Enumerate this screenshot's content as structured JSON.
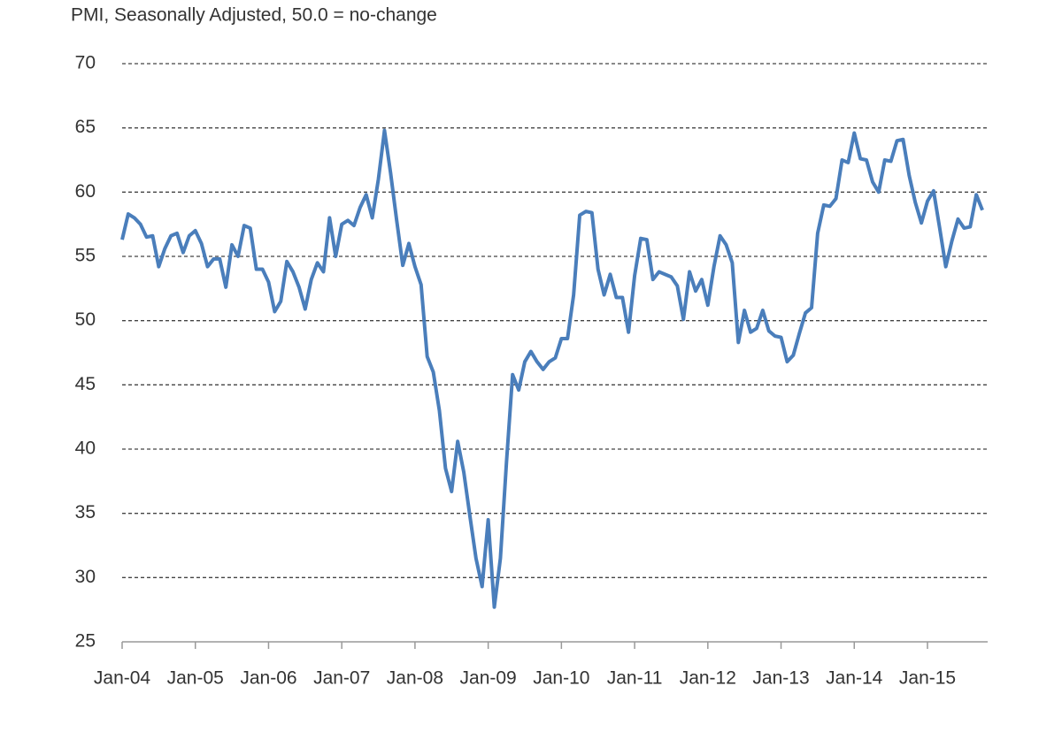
{
  "chart_data": {
    "type": "line",
    "title": "PMI, Seasonally Adjusted, 50.0 = no-change",
    "categories": [
      "Jan-04",
      null,
      null,
      null,
      null,
      null,
      null,
      null,
      null,
      null,
      null,
      null,
      "Jan-05",
      null,
      null,
      null,
      null,
      null,
      null,
      null,
      null,
      null,
      null,
      null,
      "Jan-06",
      null,
      null,
      null,
      null,
      null,
      null,
      null,
      null,
      null,
      null,
      null,
      "Jan-07",
      null,
      null,
      null,
      null,
      null,
      null,
      null,
      null,
      null,
      null,
      null,
      "Jan-08",
      null,
      null,
      null,
      null,
      null,
      null,
      null,
      null,
      null,
      null,
      null,
      "Jan-09",
      null,
      null,
      null,
      null,
      null,
      null,
      null,
      null,
      null,
      null,
      null,
      "Jan-10",
      null,
      null,
      null,
      null,
      null,
      null,
      null,
      null,
      null,
      null,
      null,
      "Jan-11",
      null,
      null,
      null,
      null,
      null,
      null,
      null,
      null,
      null,
      null,
      null,
      "Jan-12",
      null,
      null,
      null,
      null,
      null,
      null,
      null,
      null,
      null,
      null,
      null,
      "Jan-13",
      null,
      null,
      null,
      null,
      null,
      null,
      null,
      null,
      null,
      null,
      null,
      "Jan-14",
      null,
      null,
      null,
      null,
      null,
      null,
      null,
      null,
      null,
      null,
      null,
      "Jan-15",
      null,
      null,
      null,
      null,
      null,
      null,
      null,
      null,
      null
    ],
    "series": [
      {
        "name": "PMI",
        "color": "#4a7ebb",
        "values": [
          56.3,
          58.3,
          58.0,
          57.5,
          56.5,
          56.6,
          54.2,
          55.6,
          56.6,
          56.8,
          55.3,
          56.6,
          57.0,
          56.0,
          54.2,
          54.8,
          54.8,
          52.6,
          55.9,
          55.0,
          57.4,
          57.2,
          54.0,
          54.0,
          53.0,
          50.7,
          51.5,
          54.6,
          53.8,
          52.6,
          50.9,
          53.2,
          54.5,
          53.8,
          58.0,
          55.0,
          57.5,
          57.8,
          57.4,
          58.8,
          59.8,
          58.0,
          61.0,
          64.8,
          61.5,
          57.8,
          54.3,
          56.0,
          54.2,
          52.8,
          47.2,
          46.0,
          43.0,
          38.5,
          36.7,
          40.6,
          38.2,
          34.8,
          31.5,
          29.3,
          34.5,
          27.7,
          31.5,
          39.0,
          45.8,
          44.6,
          46.8,
          47.6,
          46.8,
          46.2,
          46.8,
          47.1,
          48.6,
          48.6,
          52.0,
          58.2,
          58.5,
          58.4,
          54.0,
          52.0,
          53.6,
          51.8,
          51.8,
          49.1,
          53.5,
          56.4,
          56.3,
          53.2,
          53.8,
          53.6,
          53.4,
          52.7,
          50.1,
          53.8,
          52.3,
          53.2,
          51.2,
          54.2,
          56.6,
          55.9,
          54.5,
          48.3,
          50.8,
          49.1,
          49.4,
          50.8,
          49.2,
          48.8,
          48.7,
          46.8,
          47.3,
          49.0,
          50.6,
          51.0,
          56.8,
          59.0,
          58.9,
          59.5,
          62.5,
          62.3,
          64.6,
          62.6,
          62.5,
          60.8,
          60.0,
          62.5,
          62.4,
          64.0,
          64.1,
          61.3,
          59.2,
          57.6,
          59.3,
          60.1,
          57.2,
          54.2,
          56.2,
          57.9,
          57.2,
          57.3,
          59.8,
          58.6
        ]
      }
    ],
    "ylim": [
      25,
      70
    ],
    "yticks": [
      25,
      30,
      35,
      40,
      45,
      50,
      55,
      60,
      65,
      70
    ],
    "grid": true
  }
}
